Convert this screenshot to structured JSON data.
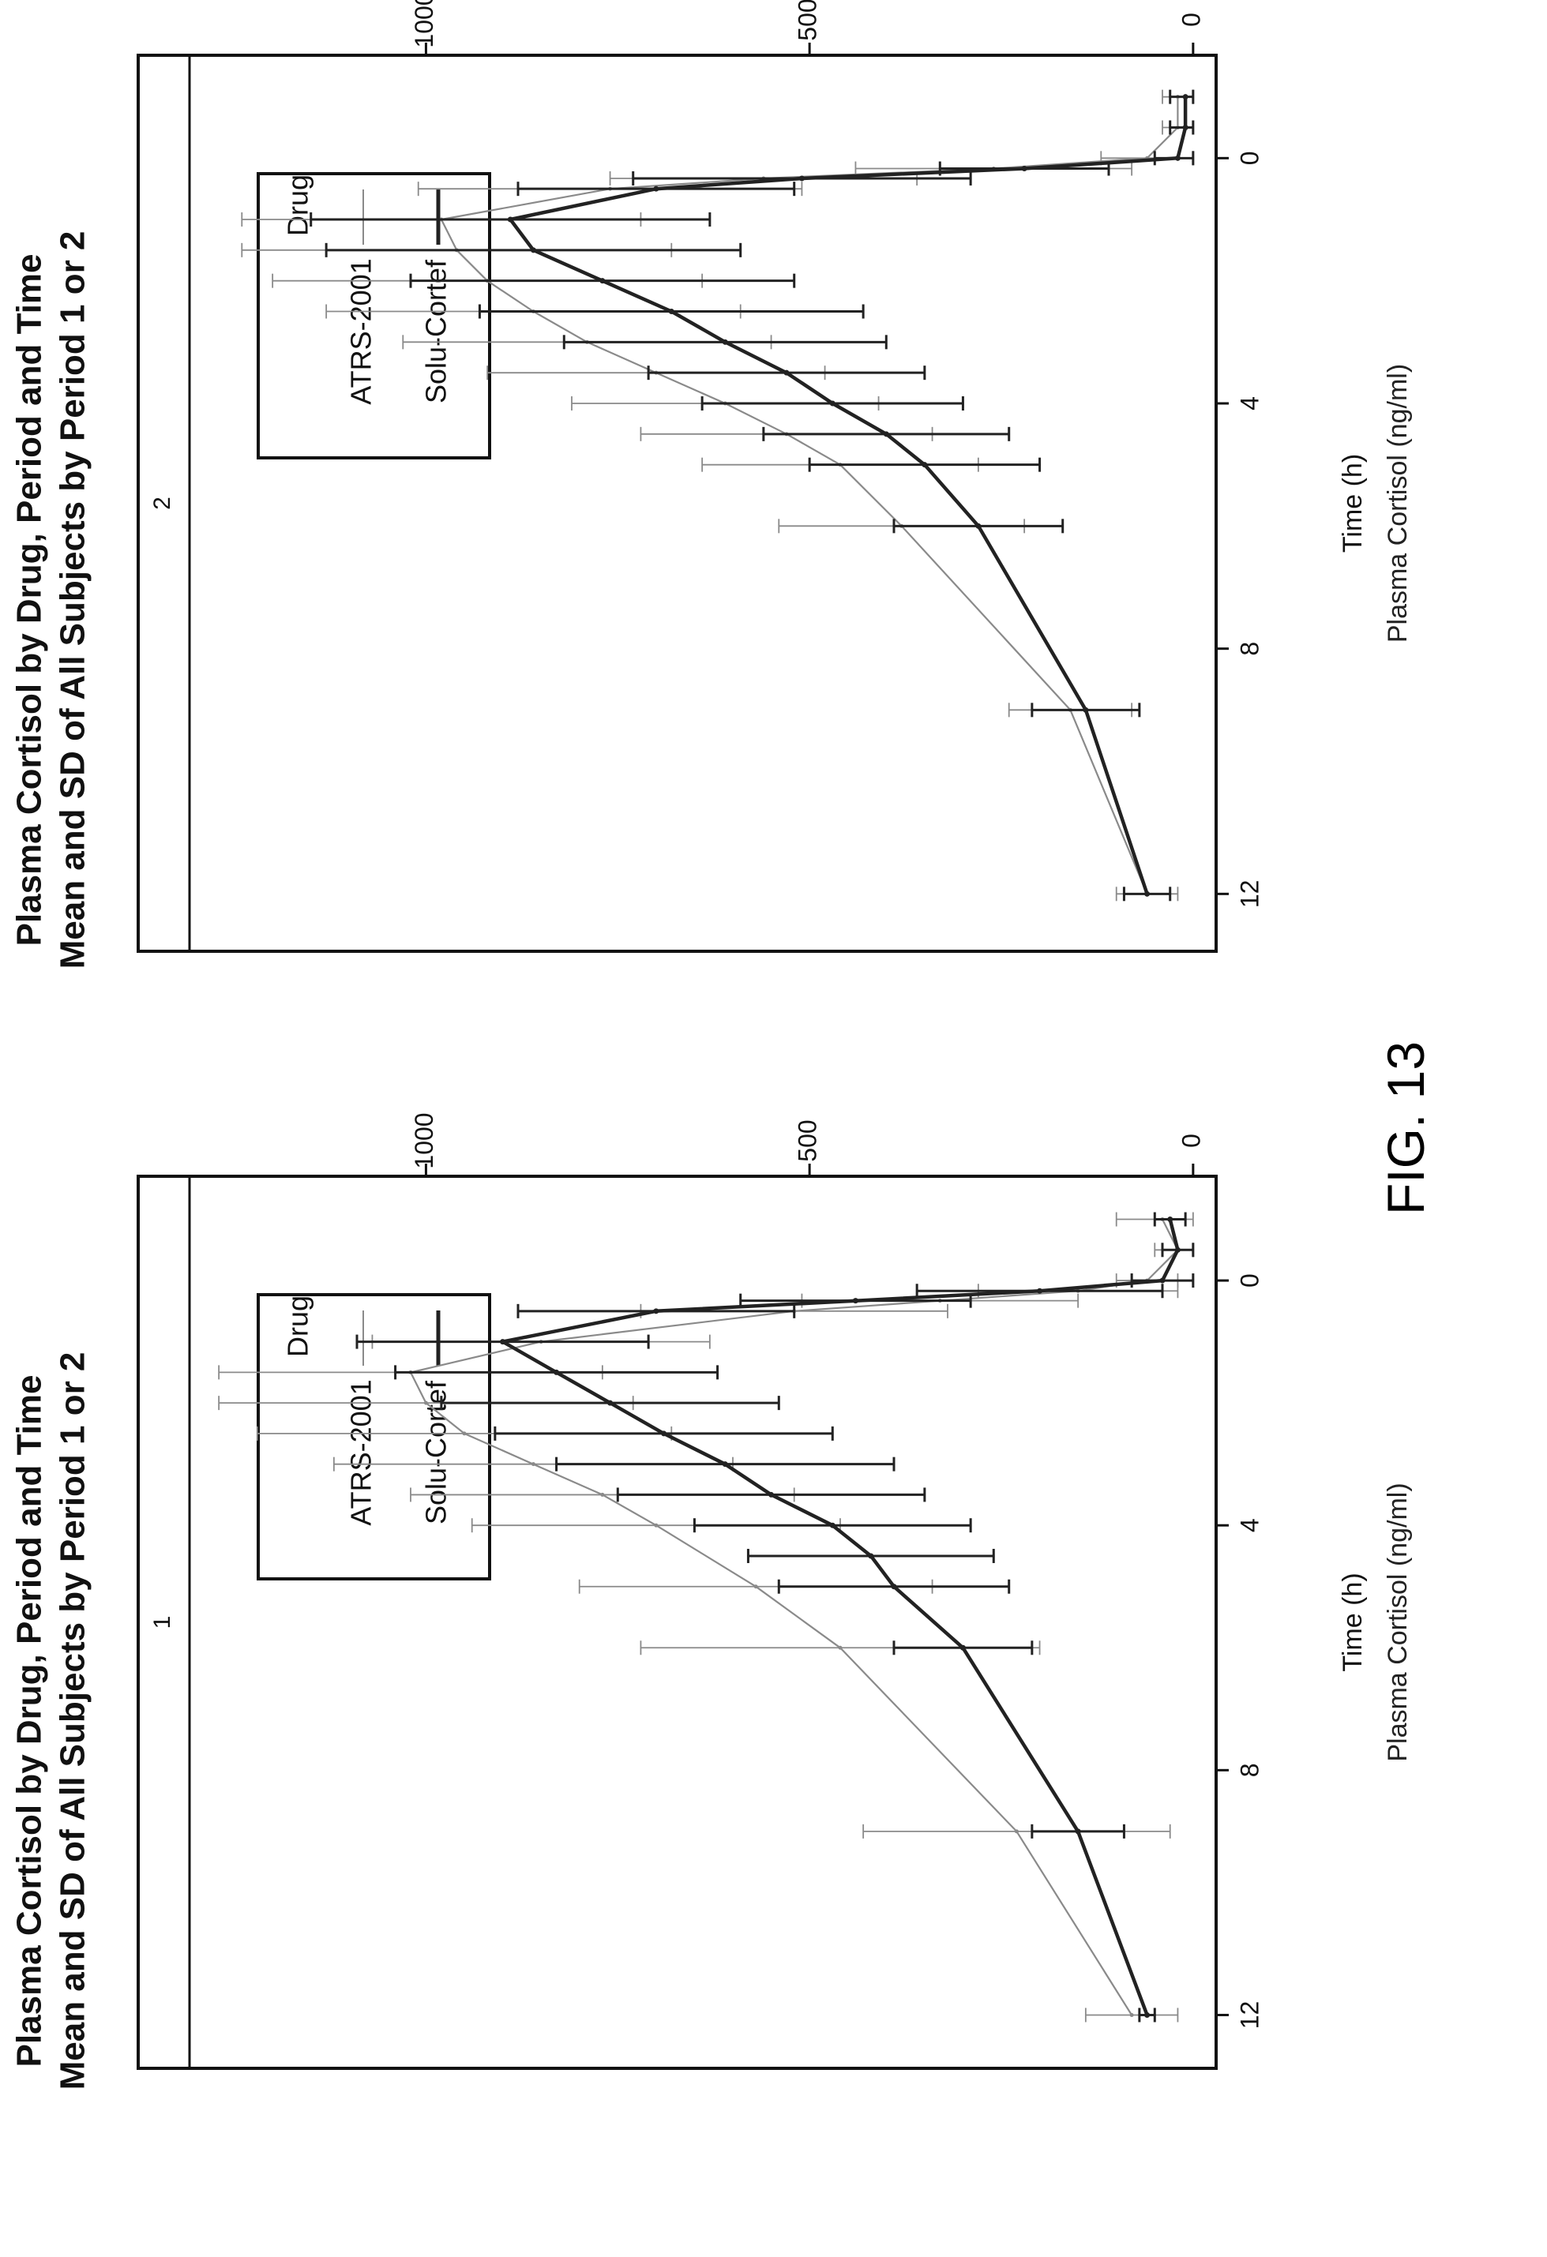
{
  "figure_label": "FIG. 13",
  "colors": {
    "atrs": "#8a8a8a",
    "solu": "#222222",
    "frame": "#111111",
    "text": "#111111"
  },
  "chart_data": [
    {
      "type": "line",
      "title": "Plasma Cortisol by Drug, Period and Time",
      "subtitle": "Mean and SD of All Subjects by Period 1 or 2",
      "panel_label": "1",
      "xlabel": "Time (h)",
      "ylabel": "Plasma Cortisol (ng/ml)",
      "xlim": [
        -2,
        13
      ],
      "ylim": [
        -30,
        1370
      ],
      "xticks": [
        0,
        4,
        8,
        12
      ],
      "yticks": [
        0,
        500,
        1000
      ],
      "grid": false,
      "legend": {
        "title": "Drug",
        "placement": "top-left",
        "entries": [
          "ATRS-2001",
          "Solu-Cortef"
        ]
      },
      "series": [
        {
          "name": "ATRS-2001",
          "style": "thin",
          "x": [
            -1,
            -0.5,
            0,
            0.17,
            0.33,
            0.5,
            1,
            1.5,
            2,
            2.5,
            3,
            3.5,
            4,
            5,
            6,
            9,
            12
          ],
          "y": [
            40,
            20,
            60,
            150,
            330,
            520,
            850,
            1020,
            1000,
            950,
            860,
            770,
            700,
            570,
            460,
            230,
            80
          ],
          "sd": [
            60,
            30,
            40,
            130,
            180,
            200,
            220,
            250,
            270,
            270,
            260,
            250,
            240,
            230,
            260,
            200,
            60
          ]
        },
        {
          "name": "Solu-Cortef",
          "style": "thick",
          "x": [
            -1,
            -0.5,
            0,
            0.17,
            0.33,
            0.5,
            1,
            1.5,
            2,
            2.5,
            3,
            3.5,
            4,
            4.5,
            5,
            6,
            9,
            12
          ],
          "y": [
            30,
            20,
            40,
            200,
            440,
            700,
            900,
            830,
            760,
            690,
            610,
            550,
            470,
            420,
            390,
            300,
            150,
            60
          ],
          "sd": [
            20,
            20,
            40,
            160,
            150,
            180,
            190,
            210,
            220,
            220,
            220,
            200,
            180,
            160,
            150,
            90,
            60,
            10
          ]
        }
      ]
    },
    {
      "type": "line",
      "title": "Plasma Cortisol by Drug, Period and Time",
      "subtitle": "Mean and SD of All Subjects by Period 1 or 2",
      "panel_label": "2",
      "xlabel": "Time (h)",
      "ylabel": "Plasma Cortisol (ng/ml)",
      "xlim": [
        -2,
        13
      ],
      "ylim": [
        -30,
        1370
      ],
      "xticks": [
        0,
        4,
        8,
        12
      ],
      "yticks": [
        0,
        500,
        1000
      ],
      "grid": false,
      "legend": {
        "title": "Drug",
        "placement": "top-left",
        "entries": [
          "ATRS-2001",
          "Solu-Cortef"
        ]
      },
      "series": [
        {
          "name": "ATRS-2001",
          "style": "thin",
          "x": [
            -1,
            -0.5,
            0,
            0.17,
            0.33,
            0.5,
            1,
            1.5,
            2,
            2.5,
            3,
            3.5,
            4,
            4.5,
            5,
            6,
            9,
            12
          ],
          "y": [
            20,
            20,
            60,
            260,
            560,
            760,
            980,
            960,
            920,
            860,
            790,
            700,
            610,
            530,
            460,
            380,
            160,
            60
          ],
          "sd": [
            20,
            20,
            60,
            180,
            200,
            250,
            260,
            280,
            280,
            270,
            240,
            220,
            200,
            190,
            180,
            160,
            80,
            40
          ]
        },
        {
          "name": "Solu-Cortef",
          "style": "thick",
          "x": [
            -1,
            -0.5,
            0,
            0.17,
            0.33,
            0.5,
            1,
            1.5,
            2,
            2.5,
            3,
            3.5,
            4,
            4.5,
            5,
            6,
            9,
            12
          ],
          "y": [
            10,
            10,
            20,
            220,
            510,
            700,
            890,
            860,
            770,
            680,
            610,
            530,
            470,
            400,
            350,
            280,
            140,
            60
          ],
          "sd": [
            20,
            20,
            30,
            110,
            220,
            180,
            260,
            270,
            250,
            250,
            210,
            180,
            170,
            160,
            150,
            110,
            70,
            30
          ]
        }
      ]
    }
  ]
}
